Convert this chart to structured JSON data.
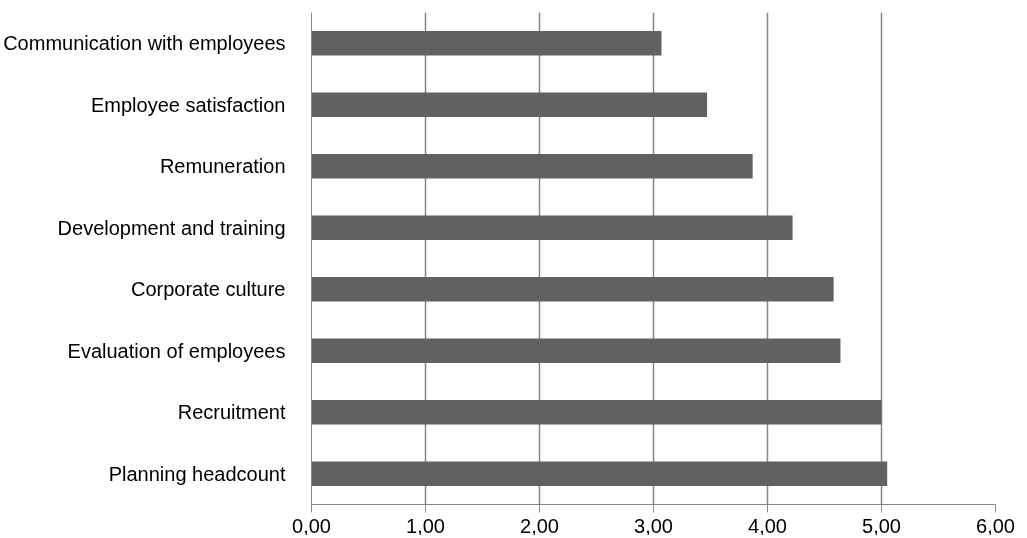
{
  "chart_data": {
    "type": "bar",
    "orientation": "horizontal",
    "categories": [
      "Communication with employees",
      "Employee satisfaction",
      "Remuneration",
      "Development and training",
      "Corporate culture",
      "Evaluation of employees",
      "Recruitment",
      "Planning headcount"
    ],
    "values": [
      3.07,
      3.47,
      3.87,
      4.22,
      4.58,
      4.64,
      5.0,
      5.05
    ],
    "color": "#616161",
    "xlim": [
      0,
      6
    ],
    "xticks": [
      {
        "value": 0,
        "label": "0,00"
      },
      {
        "value": 1,
        "label": "1,00"
      },
      {
        "value": 2,
        "label": "2,00"
      },
      {
        "value": 3,
        "label": "3,00"
      },
      {
        "value": 4,
        "label": "4,00"
      },
      {
        "value": 5,
        "label": "5,00"
      },
      {
        "value": 6,
        "label": "6,00"
      }
    ],
    "grid": "x"
  }
}
